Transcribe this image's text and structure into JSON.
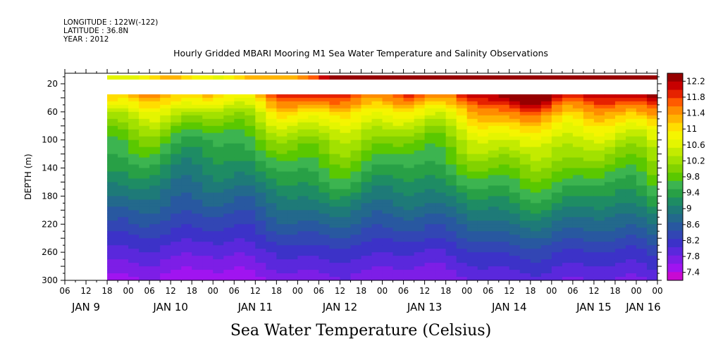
{
  "header": {
    "longitude": "LONGITUDE : 122W(-122)",
    "latitude": "LATITUDE : 36.8N",
    "year": "YEAR : 2012"
  },
  "chart_data": {
    "type": "heatmap",
    "title": "Hourly Gridded MBARI Mooring M1 Sea Water Temperature and Salinity Observations",
    "xlabel": "Sea Water Temperature (Celsius)",
    "ylabel": "DEPTH (m)",
    "y_axis": {
      "range": [
        300,
        5
      ],
      "reversed": true,
      "tick_values": [
        20,
        60,
        100,
        140,
        180,
        220,
        260,
        300
      ],
      "tick_labels": [
        "20",
        "60",
        "100",
        "140",
        "180",
        "220",
        "260",
        "300"
      ]
    },
    "x_axis": {
      "hour_tick_labels": [
        "06",
        "12",
        "18",
        "00",
        "06",
        "12",
        "18",
        "00",
        "06",
        "12",
        "18",
        "00",
        "06",
        "12",
        "18",
        "00",
        "06",
        "12",
        "18",
        "00",
        "06",
        "12",
        "18",
        "00",
        "06",
        "12",
        "18",
        "00",
        "00"
      ],
      "day_labels": [
        "JAN  9",
        "JAN 10",
        "JAN 11",
        "JAN 12",
        "JAN 13",
        "JAN 14",
        "JAN 15",
        "JAN 16"
      ]
    },
    "data_start_hour": 12,
    "colorbar": {
      "levels": [
        "12.2",
        "11.8",
        "11.4",
        "11",
        "10.6",
        "10.2",
        "9.8",
        "9.4",
        "9",
        "8.6",
        "8.2",
        "7.8",
        "7.4"
      ],
      "colors": [
        "#960000",
        "#c80000",
        "#e62200",
        "#ff5a00",
        "#ff8c00",
        "#ffb400",
        "#ffdd00",
        "#f5f500",
        "#e4f500",
        "#c3eb00",
        "#a2e100",
        "#82d200",
        "#5ac800",
        "#3cb450",
        "#28a046",
        "#1e8c64",
        "#1e7a78",
        "#23698c",
        "#2858a0",
        "#3246b4",
        "#3c32c8",
        "#5a28dc",
        "#7d1ee6",
        "#a014f0",
        "#c80ad2"
      ]
    },
    "surface_sensor_depth_m": 10,
    "profile_depths_m": [
      40,
      60,
      80,
      100,
      140,
      180,
      220,
      260,
      300
    ],
    "representative_profile_C": [
      10.8,
      10.2,
      9.8,
      9.5,
      9.1,
      8.7,
      8.3,
      7.9,
      7.5
    ]
  }
}
